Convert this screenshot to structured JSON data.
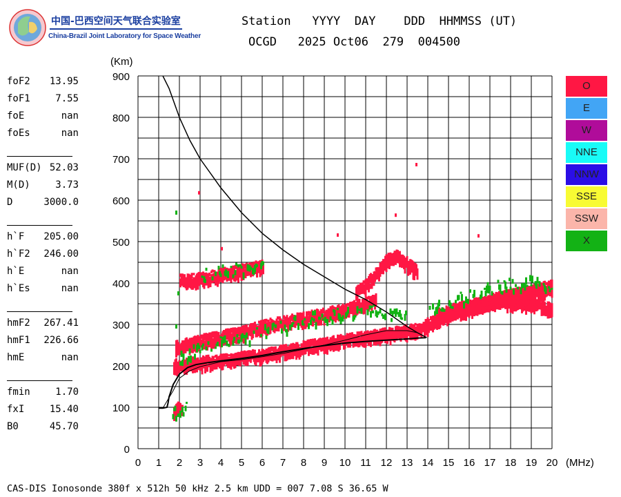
{
  "header": {
    "org_cn": "中国-巴西空间天气联合实验室",
    "org_en": "China-Brazil Joint Laboratory for Space Weather",
    "line1": "Station   YYYY  DAY    DDD  HHMMSS (UT)",
    "line2": "OCGD   2025 Oct06  279  004500"
  },
  "params": [
    [
      {
        "label": "foF2",
        "value": "13.95"
      },
      {
        "label": "foF1",
        "value": "7.55"
      },
      {
        "label": "foE",
        "value": "nan"
      },
      {
        "label": "foEs",
        "value": "nan"
      }
    ],
    [
      {
        "label": "MUF(D)",
        "value": "52.03"
      },
      {
        "label": "M(D)",
        "value": "3.73"
      },
      {
        "label": "D",
        "value": "3000.0"
      }
    ],
    [
      {
        "label": "h`F",
        "value": "205.00"
      },
      {
        "label": "h`F2",
        "value": "246.00"
      },
      {
        "label": "h`E",
        "value": "nan"
      },
      {
        "label": "h`Es",
        "value": "nan"
      }
    ],
    [
      {
        "label": "hmF2",
        "value": "267.41"
      },
      {
        "label": "hmF1",
        "value": "226.66"
      },
      {
        "label": "hmE",
        "value": "nan"
      }
    ],
    [
      {
        "label": "fmin",
        "value": "1.70"
      },
      {
        "label": "fxI",
        "value": "15.40"
      },
      {
        "label": "B0",
        "value": "45.70"
      }
    ]
  ],
  "legend": [
    {
      "label": "O",
      "color": "#ff1744"
    },
    {
      "label": "E",
      "color": "#42a5f5"
    },
    {
      "label": "W",
      "color": "#b00c9a"
    },
    {
      "label": "NNE",
      "color": "#19fbf7"
    },
    {
      "label": "NNW",
      "color": "#2b0ee6"
    },
    {
      "label": "SSE",
      "color": "#f8fb33"
    },
    {
      "label": "SSW",
      "color": "#fbb5aa"
    },
    {
      "label": "X",
      "color": "#13b215"
    }
  ],
  "footer": "CAS-DIS Ionosonde 380f x 512h 50 kHz 2.5 km UDD = 007 7.08 S 36.65 W",
  "chart_data": {
    "type": "scatter",
    "title": "",
    "xlabel": "(MHz)",
    "ylabel": "(Km)",
    "xlim": [
      0,
      20
    ],
    "ylim": [
      0,
      900
    ],
    "xticks": [
      0,
      1,
      2,
      3,
      4,
      5,
      6,
      7,
      8,
      9,
      10,
      11,
      12,
      13,
      14,
      15,
      16,
      17,
      18,
      19,
      20
    ],
    "yticks": [
      0,
      100,
      200,
      300,
      400,
      500,
      600,
      700,
      800,
      900
    ],
    "grid": true,
    "series": [
      {
        "name": "O",
        "color": "#ff1744",
        "traces": [
          {
            "x": [
              1.7,
              1.85,
              2.0,
              2.1
            ],
            "y": [
              95,
              100,
              105,
              98
            ]
          },
          {
            "x": [
              1.7,
              2.5,
              3.5,
              4.5,
              5.5,
              6.5,
              7.5,
              8.5,
              9.5,
              10.5,
              11.5,
              12.5,
              13.5,
              14.0
            ],
            "y": [
              205,
              210,
              215,
              220,
              228,
              235,
              245,
              255,
              262,
              270,
              278,
              285,
              292,
              300
            ]
          },
          {
            "x": [
              1.8,
              3.0,
              4.0,
              5.0,
              6.0,
              7.0,
              8.0,
              9.0,
              10.0,
              11.0,
              11.5
            ],
            "y": [
              250,
              265,
              275,
              285,
              300,
              310,
              320,
              330,
              340,
              355,
              365
            ]
          },
          {
            "x": [
              2.0,
              3.0,
              4.0,
              5.0,
              6.0
            ],
            "y": [
              410,
              415,
              425,
              435,
              445
            ]
          },
          {
            "x": [
              13.8,
              14.5,
              15.5,
              16.5,
              17.5,
              18.5,
              19.5,
              20.0
            ],
            "y": [
              300,
              320,
              340,
              355,
              370,
              380,
              390,
              395
            ]
          },
          {
            "x": [
              14.2,
              15.0,
              16.0,
              17.0,
              18.0,
              19.0,
              20.0
            ],
            "y": [
              310,
              330,
              345,
              360,
              375,
              385,
              400
            ]
          },
          {
            "x": [
              14.5,
              15.5,
              16.5,
              17.5,
              18.5,
              19.5,
              20.0
            ],
            "y": [
              330,
              345,
              355,
              360,
              355,
              350,
              340
            ]
          },
          {
            "x": [
              10.5,
              11.0,
              11.5,
              12.0,
              12.5,
              13.0,
              13.5
            ],
            "y": [
              380,
              400,
              430,
              460,
              470,
              450,
              430
            ]
          }
        ]
      },
      {
        "name": "X",
        "color": "#13b215",
        "traces": [
          {
            "x": [
              1.6,
              2.2,
              2.4
            ],
            "y": [
              90,
              95,
              102
            ]
          },
          {
            "x": [
              2.0,
              3.0,
              4.0,
              5.0,
              6.0,
              7.0,
              8.0,
              9.0,
              10.0,
              11.0,
              12.0,
              13.0
            ],
            "y": [
              225,
              245,
              258,
              270,
              285,
              300,
              315,
              325,
              330,
              335,
              330,
              320
            ]
          },
          {
            "x": [
              3.0,
              4.0,
              5.0,
              6.0
            ],
            "y": [
              420,
              430,
              440,
              448
            ]
          },
          {
            "x": [
              14.0,
              15.0,
              16.0,
              17.0,
              18.0,
              19.0,
              20.0
            ],
            "y": [
              340,
              355,
              375,
              390,
              400,
              405,
              400
            ]
          }
        ]
      }
    ],
    "profile": {
      "x": [
        1.0,
        1.2,
        1.4,
        1.45,
        1.5,
        1.7,
        2.0,
        2.4,
        2.8,
        3.4,
        4.0,
        5.0,
        6.0,
        7.0,
        8.0,
        9.0,
        10.0,
        11.0,
        12.0,
        13.0,
        13.5,
        13.9
      ],
      "y": [
        98,
        98,
        100,
        110,
        125,
        155,
        180,
        196,
        203,
        208,
        212,
        218,
        225,
        234,
        242,
        249,
        255,
        259,
        262,
        265,
        267,
        268
      ]
    },
    "virtual_trace": {
      "x": [
        1.2,
        1.7,
        2.0,
        2.5,
        3.0,
        4.0,
        5.0,
        6.0,
        7.0,
        8.0,
        9.0,
        10.0,
        11.0,
        12.0,
        13.0,
        13.5
      ],
      "y": [
        98,
        140,
        170,
        188,
        198,
        210,
        215,
        222,
        230,
        240,
        250,
        262,
        275,
        285,
        285,
        280
      ]
    },
    "muf_curve": {
      "x": [
        1.2,
        1.5,
        2.0,
        2.5,
        3.0,
        3.5,
        4.0,
        4.5,
        5.0,
        5.5,
        6.0,
        7.0,
        8.0,
        9.0,
        10.0,
        11.0,
        12.0,
        13.0,
        13.5,
        13.95
      ],
      "y": [
        900,
        870,
        800,
        745,
        700,
        665,
        630,
        600,
        570,
        545,
        520,
        480,
        445,
        415,
        385,
        360,
        330,
        295,
        280,
        268
      ]
    }
  }
}
